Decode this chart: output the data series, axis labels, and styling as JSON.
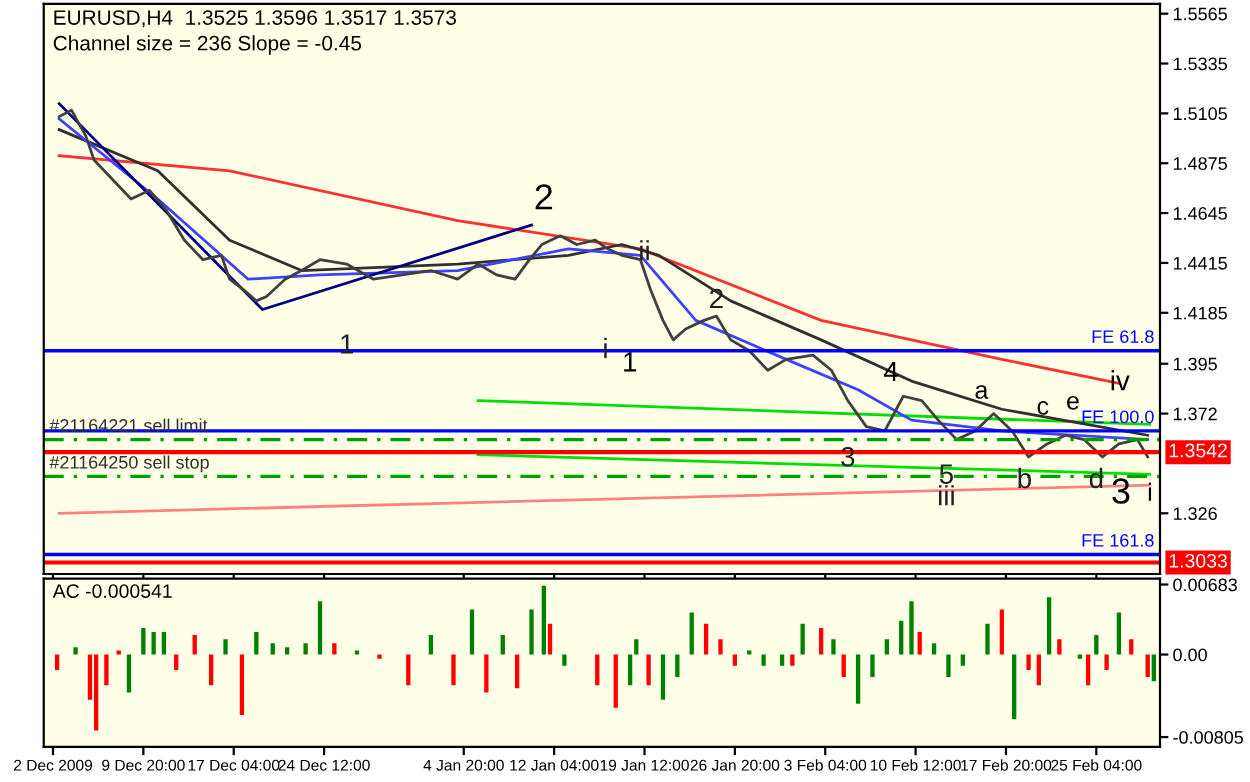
{
  "chart_data": [
    {
      "type": "line",
      "annotations": [
        "EURUSD,H4  1.3525 1.3596 1.3517 1.3573",
        "Channel size = 236 Slope = -0.45",
        "2",
        "1",
        "c",
        "3",
        "4",
        "a",
        "iv",
        "e",
        "i",
        {
          "text": "1",
          "x": "2009-12-26T08:00",
          "y": 1.403
        },
        {
          "text": "i",
          "x": "2010-01-16T08:00",
          "y": 1.401
        },
        {
          "text": "ii",
          "x": "2010-01-19T12:00",
          "y": 1.446
        },
        {
          "text": "2",
          "x": "2010-01-25T08:00",
          "y": 1.424
        },
        {
          "text": "3",
          "x": "2010-02-05T00:00",
          "y": 1.351
        },
        {
          "text": "5",
          "x": "2010-02-13T00:00",
          "y": 1.343
        },
        {
          "text": "iii",
          "x": "2010-02-13T00:00",
          "y": 1.333
        },
        {
          "text": "b",
          "x": "2010-02-19T08:00",
          "y": 1.341
        },
        {
          "text": "d",
          "x": "2010-02-25T04:00",
          "y": 1.341
        }
      ],
      "series": [
        {
          "color": "#ff8080",
          "x": [
            "2009-12-03T00:00",
            "2010-03-01T12:00"
          ],
          "values": [
            1.326,
            1.339
          ]
        },
        {
          "color": "#00e000",
          "x": [
            "2010-01-06T00:00",
            "2010-03-01T12:00"
          ],
          "values": [
            1.378,
            1.367
          ]
        },
        {
          "color": "#00e000",
          "x": [
            "2010-01-06T00:00",
            "2010-03-01T12:00"
          ],
          "values": [
            1.353,
            1.344
          ]
        },
        {
          "color": "#ff3030",
          "x": [
            "2009-12-03T00:00",
            "2009-12-16T20:00",
            "2010-01-04T08:00",
            "2010-01-19T04:00",
            "2010-02-02T20:00",
            "2010-02-17T12:00",
            "2010-02-27T00:00"
          ],
          "values": [
            1.491,
            1.484,
            1.461,
            1.448,
            1.415,
            1.397,
            1.386
          ]
        },
        {
          "color": "#303030",
          "x": [
            "2009-12-03T00:00",
            "2009-12-11T00:00",
            "2009-12-16T20:00",
            "2009-12-22T16:00",
            "2010-01-04T08:00",
            "2010-01-13T08:00",
            "2010-01-17T16:00",
            "2010-01-20T16:00",
            "2010-01-26T12:00",
            "2010-02-02T20:00",
            "2010-02-10T04:00",
            "2010-02-17T12:00",
            "2010-03-01T08:00"
          ],
          "values": [
            1.503,
            1.484,
            1.452,
            1.438,
            1.441,
            1.445,
            1.45,
            1.445,
            1.424,
            1.406,
            1.387,
            1.374,
            1.362
          ]
        },
        {
          "color": "#4040ff",
          "x": [
            "2009-12-03T00:00",
            "2009-12-11T00:00",
            "2009-12-18T08:00",
            "2009-12-24T04:00",
            "2010-01-04T08:00",
            "2010-01-13T08:00",
            "2010-01-19T04:00",
            "2010-01-23T16:00",
            "2010-01-31T00:00",
            "2010-02-05T20:00",
            "2010-02-10T04:00",
            "2010-02-17T12:00",
            "2010-03-01T08:00"
          ],
          "values": [
            1.508,
            1.471,
            1.434,
            1.436,
            1.438,
            1.448,
            1.445,
            1.415,
            1.397,
            1.383,
            1.369,
            1.364,
            1.36
          ]
        },
        {
          "color": "#000080",
          "x": [
            "2009-12-03T00:00",
            "2009-12-19T12:00",
            "2010-01-10T08:00"
          ],
          "values": [
            1.515,
            1.42,
            1.459
          ]
        },
        {
          "color": "#404040",
          "x": [
            "2009-12-03T00:00",
            "2009-12-04T00:00",
            "2009-12-05T04:00",
            "2009-12-05T20:00",
            "2009-12-07T08:00",
            "2009-12-08T20:00",
            "2009-12-10T08:00",
            "2009-12-11T16:00",
            "2009-12-13T04:00",
            "2009-12-14T16:00",
            "2009-12-16T04:00",
            "2009-12-16T20:00",
            "2009-12-18T00:00",
            "2009-12-19T00:00",
            "2009-12-19T20:00",
            "2009-12-21T08:00",
            "2009-12-22T16:00",
            "2009-12-24T04:00",
            "2009-12-26T08:00",
            "2009-12-28T12:00",
            "2009-12-30T20:00",
            "2010-01-02T04:00",
            "2010-01-04T08:00",
            "2010-01-06T00:00",
            "2010-01-07T12:00",
            "2010-01-09T00:00",
            "2010-01-10T04:00",
            "2010-01-11T04:00",
            "2010-01-12T16:00",
            "2010-01-14T00:00",
            "2010-01-15T12:00",
            "2010-01-16T12:00",
            "2010-01-17T16:00",
            "2010-01-19T04:00",
            "2010-01-20T00:00",
            "2010-01-21T00:00",
            "2010-01-21T20:00",
            "2010-01-22T20:00",
            "2010-01-24T08:00",
            "2010-01-25T08:00",
            "2010-01-26T12:00",
            "2010-01-28T00:00",
            "2010-01-29T12:00",
            "2010-01-31T00:00",
            "2010-02-02T04:00",
            "2010-02-03T16:00",
            "2010-02-05T00:00",
            "2010-02-06T12:00",
            "2010-02-08T00:00",
            "2010-02-09T12:00",
            "2010-02-11T00:00",
            "2010-02-12T08:00",
            "2010-02-13T20:00",
            "2010-02-15T08:00",
            "2010-02-16T20:00",
            "2010-02-18T08:00",
            "2010-02-19T16:00",
            "2010-02-21T04:00",
            "2010-02-22T16:00",
            "2010-02-24T04:00",
            "2010-02-25T16:00",
            "2010-02-27T00:00",
            "2010-02-28T12:00",
            "2010-03-01T08:00"
          ],
          "values": [
            1.509,
            1.512,
            1.5,
            1.489,
            1.48,
            1.471,
            1.475,
            1.466,
            1.452,
            1.443,
            1.445,
            1.434,
            1.429,
            1.424,
            1.426,
            1.434,
            1.438,
            1.443,
            1.441,
            1.434,
            1.436,
            1.438,
            1.434,
            1.441,
            1.436,
            1.434,
            1.443,
            1.45,
            1.454,
            1.45,
            1.452,
            1.448,
            1.445,
            1.443,
            1.429,
            1.415,
            1.406,
            1.411,
            1.415,
            1.417,
            1.406,
            1.401,
            1.392,
            1.397,
            1.399,
            1.392,
            1.378,
            1.366,
            1.364,
            1.38,
            1.378,
            1.369,
            1.36,
            1.364,
            1.372,
            1.364,
            1.352,
            1.358,
            1.362,
            1.36,
            1.352,
            1.358,
            1.36,
            1.352
          ]
        }
      ],
      "ref_lines": [
        {
          "axis": "y",
          "value": 1.401,
          "label": "FE 61.8",
          "color": "#0000ff",
          "line_style": "solid"
        },
        {
          "axis": "y",
          "value": 1.364,
          "label": "FE 100.0",
          "color": "#0000ff",
          "line_style": "solid"
        },
        {
          "axis": "y",
          "value": 1.36,
          "label": "#21164221 sell limit",
          "color": "#00a000",
          "line_style": "dashed"
        },
        {
          "axis": "y",
          "value": 1.343,
          "label": "#21164250 sell stop",
          "color": "#00a000",
          "line_style": "dashed"
        },
        {
          "axis": "y",
          "value": 1.307,
          "label": "FE 161.8",
          "color": "#0000ff",
          "line_style": "solid"
        },
        {
          "axis": "y",
          "value": 1.3542,
          "label": "1.3542",
          "color": "#ff0000"
        },
        {
          "axis": "y",
          "value": 1.3033,
          "label": "1.3033",
          "color": "#ff0000"
        }
      ],
      "xlim": [
        "2009-12-01T18:00",
        "2010-03-02T08:00"
      ],
      "xticks": [
        {
          "value": "2009-12-02T12:00",
          "label": null
        },
        {
          "value": "2009-12-09T20:00",
          "label": null
        },
        {
          "value": "2009-12-17T04:00",
          "label": null
        },
        {
          "value": "2009-12-24T12:00",
          "label": null
        },
        {
          "value": "2010-01-04T20:00",
          "label": null
        },
        {
          "value": "2010-01-12T04:00",
          "label": null
        },
        {
          "value": "2010-01-19T12:00",
          "label": null
        },
        {
          "value": "2010-01-26T20:00",
          "label": null
        },
        {
          "value": "2010-02-03T04:00",
          "label": null
        },
        {
          "value": "2010-02-10T12:00",
          "label": null
        },
        {
          "value": "2010-02-17T20:00",
          "label": null
        },
        {
          "value": "2010-02-25T04:00",
          "label": null
        }
      ],
      "ylim": [
        1.298,
        1.561
      ],
      "yticks": [
        1.5565,
        1.5335,
        1.5105,
        1.4875,
        1.4645,
        1.4415,
        1.4185,
        1.395,
        1.372,
        1.326
      ],
      "tick_labels": "y",
      "grid": false,
      "legend": false
    },
    {
      "type": "bar",
      "annotations": [
        "AC -0.000541"
      ],
      "x": [
        "2009-12-02T20:00",
        "2009-12-04T08:00",
        "2009-12-05T12:00",
        "2009-12-06T00:00",
        "2009-12-06T20:00",
        "2009-12-07T20:00",
        "2009-12-08T16:00",
        "2009-12-09T20:00",
        "2009-12-10T16:00",
        "2009-12-11T12:00",
        "2009-12-12T12:00",
        "2009-12-14T00:00",
        "2009-12-15T08:00",
        "2009-12-16T12:00",
        "2009-12-17T20:00",
        "2009-12-19T00:00",
        "2009-12-20T08:00",
        "2009-12-21T12:00",
        "2009-12-23T00:00",
        "2009-12-24T04:00",
        "2009-12-25T08:00",
        "2009-12-27T04:00",
        "2009-12-29T00:00",
        "2009-12-31T08:00",
        "2010-01-02T04:00",
        "2010-01-04T00:00",
        "2010-01-05T12:00",
        "2010-01-06T16:00",
        "2010-01-08T00:00",
        "2010-01-09T04:00",
        "2010-01-10T08:00",
        "2010-01-11T08:00",
        "2010-01-11T20:00",
        "2010-01-13T00:00",
        "2010-01-15T16:00",
        "2010-01-17T04:00",
        "2010-01-18T08:00",
        "2010-01-18T20:00",
        "2010-01-19T20:00",
        "2010-01-21T00:00",
        "2010-01-22T04:00",
        "2010-01-23T08:00",
        "2010-01-24T12:00",
        "2010-01-25T16:00",
        "2010-01-26T20:00",
        "2010-01-28T00:00",
        "2010-01-29T04:00",
        "2010-01-30T16:00",
        "2010-01-31T12:00",
        "2010-02-01T08:00",
        "2010-02-02T20:00",
        "2010-02-03T20:00",
        "2010-02-04T16:00",
        "2010-02-05T20:00",
        "2010-02-07T00:00",
        "2010-02-08T04:00",
        "2010-02-09T08:00",
        "2010-02-10T04:00",
        "2010-02-10T20:00",
        "2010-02-12T00:00",
        "2010-02-13T04:00",
        "2010-02-14T08:00",
        "2010-02-16T08:00",
        "2010-02-17T12:00",
        "2010-02-18T12:00",
        "2010-02-19T16:00",
        "2010-02-20T12:00",
        "2010-02-21T08:00",
        "2010-02-22T04:00",
        "2010-02-23T20:00",
        "2010-02-24T12:00",
        "2010-02-25T04:00",
        "2010-02-26T00:00",
        "2010-02-27T00:00",
        "2010-02-28T00:00",
        "2010-03-01T08:00",
        "2010-03-01T20:00"
      ],
      "values": [
        -0.0015,
        0.0007,
        -0.0044,
        -0.0074,
        -0.003,
        0.0004,
        -0.0037,
        0.0026,
        0.0022,
        0.0022,
        -0.0015,
        0.0019,
        -0.003,
        0.0015,
        -0.0059,
        0.0022,
        0.0011,
        0.0007,
        0.0011,
        0.0052,
        0.0011,
        0.0004,
        -0.0004,
        -0.003,
        0.0019,
        -0.003,
        0.0044,
        -0.0037,
        0.0019,
        -0.0033,
        0.0044,
        0.0067,
        0.003,
        -0.0011,
        -0.003,
        -0.0052,
        -0.003,
        0.0015,
        -0.003,
        -0.0044,
        -0.0022,
        0.0041,
        0.003,
        0.0015,
        -0.0011,
        0.0004,
        -0.0011,
        -0.0011,
        -0.0011,
        0.003,
        0.0026,
        0.0015,
        -0.0022,
        -0.0048,
        -0.0022,
        0.0015,
        0.0033,
        0.0052,
        0.0022,
        0.0011,
        -0.0022,
        -0.0011,
        0.003,
        0.0044,
        -0.0063,
        -0.0015,
        -0.003,
        0.0056,
        0.0015,
        -0.0004,
        -0.003,
        0.0019,
        -0.0015,
        0.0041,
        0.0015,
        -0.0022,
        -0.0026
      ],
      "colors": [
        "#ff0000",
        "#008000",
        "#ff0000",
        "#ff0000",
        "#ff0000",
        "#ff0000",
        "#008000",
        "#008000",
        "#008000",
        "#008000",
        "#ff0000",
        "#ff0000",
        "#ff0000",
        "#008000",
        "#ff0000",
        "#008000",
        "#008000",
        "#008000",
        "#008000",
        "#008000",
        "#ff0000",
        "#008000",
        "#ff0000",
        "#ff0000",
        "#008000",
        "#ff0000",
        "#008000",
        "#ff0000",
        "#008000",
        "#ff0000",
        "#008000",
        "#008000",
        "#ff0000",
        "#008000",
        "#ff0000",
        "#ff0000",
        "#008000",
        "#008000",
        "#ff0000",
        "#008000",
        "#008000",
        "#008000",
        "#ff0000",
        "#ff0000",
        "#ff0000",
        "#008000",
        "#008000",
        "#008000",
        "#ff0000",
        "#008000",
        "#ff0000",
        "#008000",
        "#ff0000",
        "#008000",
        "#008000",
        "#008000",
        "#008000",
        "#008000",
        "#ff0000",
        "#008000",
        "#008000",
        "#008000",
        "#008000",
        "#ff0000",
        "#008000",
        "#ff0000",
        "#ff0000",
        "#008000",
        "#ff0000",
        "#008000",
        "#ff0000",
        "#008000",
        "#ff0000",
        "#008000",
        "#ff0000",
        "#ff0000",
        "#008000"
      ],
      "xlim": [
        "2009-12-01T18:00",
        "2010-03-02T08:00"
      ],
      "xticks": [
        {
          "value": "2009-12-02T12:00",
          "label": "2 Dec 2009"
        },
        {
          "value": "2009-12-09T20:00",
          "label": "9 Dec 20:00"
        },
        {
          "value": "2009-12-17T04:00",
          "label": "17 Dec 04:00"
        },
        {
          "value": "2009-12-24T12:00",
          "label": "24 Dec 12:00"
        },
        {
          "value": "2010-01-04T20:00",
          "label": "4 Jan 20:00"
        },
        {
          "value": "2010-01-12T04:00",
          "label": "12 Jan 04:00"
        },
        {
          "value": "2010-01-19T12:00",
          "label": "19 Jan 12:00"
        },
        {
          "value": "2010-01-26T20:00",
          "label": "26 Jan 20:00"
        },
        {
          "value": "2010-02-03T04:00",
          "label": "3 Feb 04:00"
        },
        {
          "value": "2010-02-10T12:00",
          "label": "10 Feb 12:00"
        },
        {
          "value": "2010-02-17T20:00",
          "label": "17 Feb 20:00"
        },
        {
          "value": "2010-02-25T04:00",
          "label": "25 Feb 04:00"
        }
      ],
      "ylim": [
        -0.009,
        0.0074
      ],
      "yticks": [
        {
          "value": 0.00683,
          "label": "0.00683"
        },
        {
          "value": 0,
          "label": "0.00"
        },
        {
          "value": -0.00805,
          "label": "-0.00805"
        }
      ],
      "grid": false,
      "legend": false
    }
  ]
}
